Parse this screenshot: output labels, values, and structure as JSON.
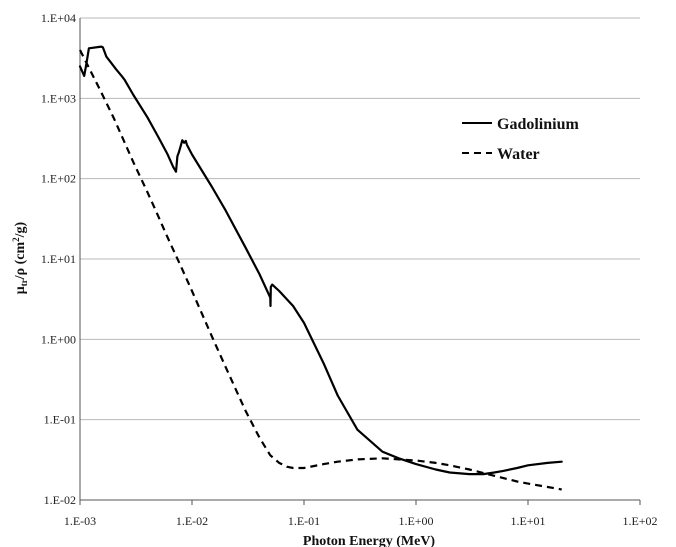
{
  "chart_data": {
    "type": "line",
    "title": "",
    "xlabel": "Photon Energy (MeV)",
    "ylabel_main": "μ",
    "ylabel_sub": "tr",
    "ylabel_rest": "/ρ (cm",
    "ylabel_sup": "2",
    "ylabel_end": "/g)",
    "x_scale": "log",
    "y_scale": "log",
    "xlim": [
      0.001,
      100
    ],
    "ylim": [
      0.01,
      10000
    ],
    "x_ticks": [
      0.001,
      0.01,
      0.1,
      1,
      10,
      100
    ],
    "x_tick_labels": [
      "1.E-03",
      "1.E-02",
      "1.E-01",
      "1.E+00",
      "1.E+01",
      "1.E+02"
    ],
    "y_ticks": [
      0.01,
      0.1,
      1,
      10,
      100,
      1000,
      10000
    ],
    "y_tick_labels": [
      "1.E-02",
      "1.E-01",
      "1.E+00",
      "1.E+01",
      "1.E+02",
      "1.E+03",
      "1.E+04"
    ],
    "grid": "horizontal",
    "legend_position": "top-right",
    "series": [
      {
        "name": "Gadolinium",
        "style": "solid",
        "x": [
          0.001,
          0.00109,
          0.00114,
          0.0012,
          0.00155,
          0.0016,
          0.00172,
          0.00185,
          0.0021,
          0.00235,
          0.0025,
          0.003,
          0.004,
          0.005,
          0.006,
          0.0068,
          0.0072,
          0.0074,
          0.0076,
          0.0079,
          0.0082,
          0.0085,
          0.0088,
          0.009,
          0.01,
          0.015,
          0.02,
          0.03,
          0.04,
          0.05,
          0.0502,
          0.0505,
          0.052,
          0.06,
          0.08,
          0.1,
          0.15,
          0.2,
          0.3,
          0.5,
          0.7,
          1,
          1.5,
          2,
          3,
          4,
          5,
          6,
          8,
          10,
          15,
          20
        ],
        "y": [
          2500,
          1900,
          2700,
          4200,
          4400,
          4300,
          3300,
          2900,
          2300,
          1900,
          1700,
          1100,
          580,
          330,
          205,
          140,
          122,
          190,
          210,
          250,
          300,
          280,
          295,
          265,
          200,
          80,
          40,
          14,
          6.5,
          3.3,
          2.6,
          4.5,
          4.8,
          4.0,
          2.6,
          1.6,
          0.5,
          0.2,
          0.075,
          0.04,
          0.033,
          0.028,
          0.024,
          0.022,
          0.021,
          0.021,
          0.022,
          0.023,
          0.025,
          0.027,
          0.029,
          0.03
        ]
      },
      {
        "name": "Water",
        "style": "dashed",
        "x": [
          0.001,
          0.0015,
          0.002,
          0.003,
          0.004,
          0.005,
          0.006,
          0.008,
          0.01,
          0.015,
          0.02,
          0.03,
          0.04,
          0.05,
          0.06,
          0.07,
          0.08,
          0.1,
          0.15,
          0.2,
          0.3,
          0.5,
          0.7,
          1,
          1.5,
          2,
          3,
          5,
          8,
          10,
          15,
          20
        ],
        "y": [
          4000,
          1300,
          570,
          160,
          68,
          34,
          19,
          8,
          4.0,
          1.1,
          0.45,
          0.13,
          0.06,
          0.036,
          0.029,
          0.026,
          0.025,
          0.025,
          0.028,
          0.03,
          0.032,
          0.033,
          0.032,
          0.031,
          0.029,
          0.027,
          0.024,
          0.02,
          0.017,
          0.016,
          0.0145,
          0.0135
        ]
      }
    ]
  }
}
